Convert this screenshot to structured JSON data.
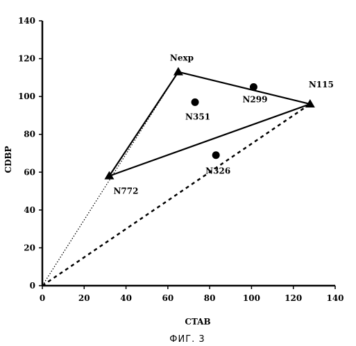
{
  "chart_data": {
    "type": "scatter",
    "title": "",
    "xlabel": "CTAB",
    "ylabel": "CDBP",
    "xlim": [
      0,
      140
    ],
    "ylim": [
      0,
      140
    ],
    "x_ticks": [
      0,
      20,
      40,
      60,
      80,
      100,
      120,
      140
    ],
    "y_ticks": [
      0,
      20,
      40,
      60,
      80,
      100,
      120,
      140
    ],
    "grid": false,
    "series": [
      {
        "marker": "triangle",
        "points": [
          {
            "label": "Nexp",
            "x": 65,
            "y": 113
          },
          {
            "label": "N115",
            "x": 128,
            "y": 96
          },
          {
            "label": "N772",
            "x": 32,
            "y": 58
          }
        ]
      },
      {
        "marker": "circle",
        "points": [
          {
            "label": "N351",
            "x": 73,
            "y": 97
          },
          {
            "label": "N299",
            "x": 101,
            "y": 105
          },
          {
            "label": "N326",
            "x": 83,
            "y": 69
          }
        ]
      }
    ],
    "solid_polygon": [
      "Nexp",
      "N115",
      "N772"
    ],
    "dotted_lines": [
      {
        "from": [
          0,
          0
        ],
        "to": [
          65,
          113
        ],
        "style": "fine-dotted"
      },
      {
        "from": [
          0,
          0
        ],
        "to": [
          128,
          96
        ],
        "style": "coarse-dashed"
      }
    ],
    "caption": "ФИГ. 3"
  }
}
